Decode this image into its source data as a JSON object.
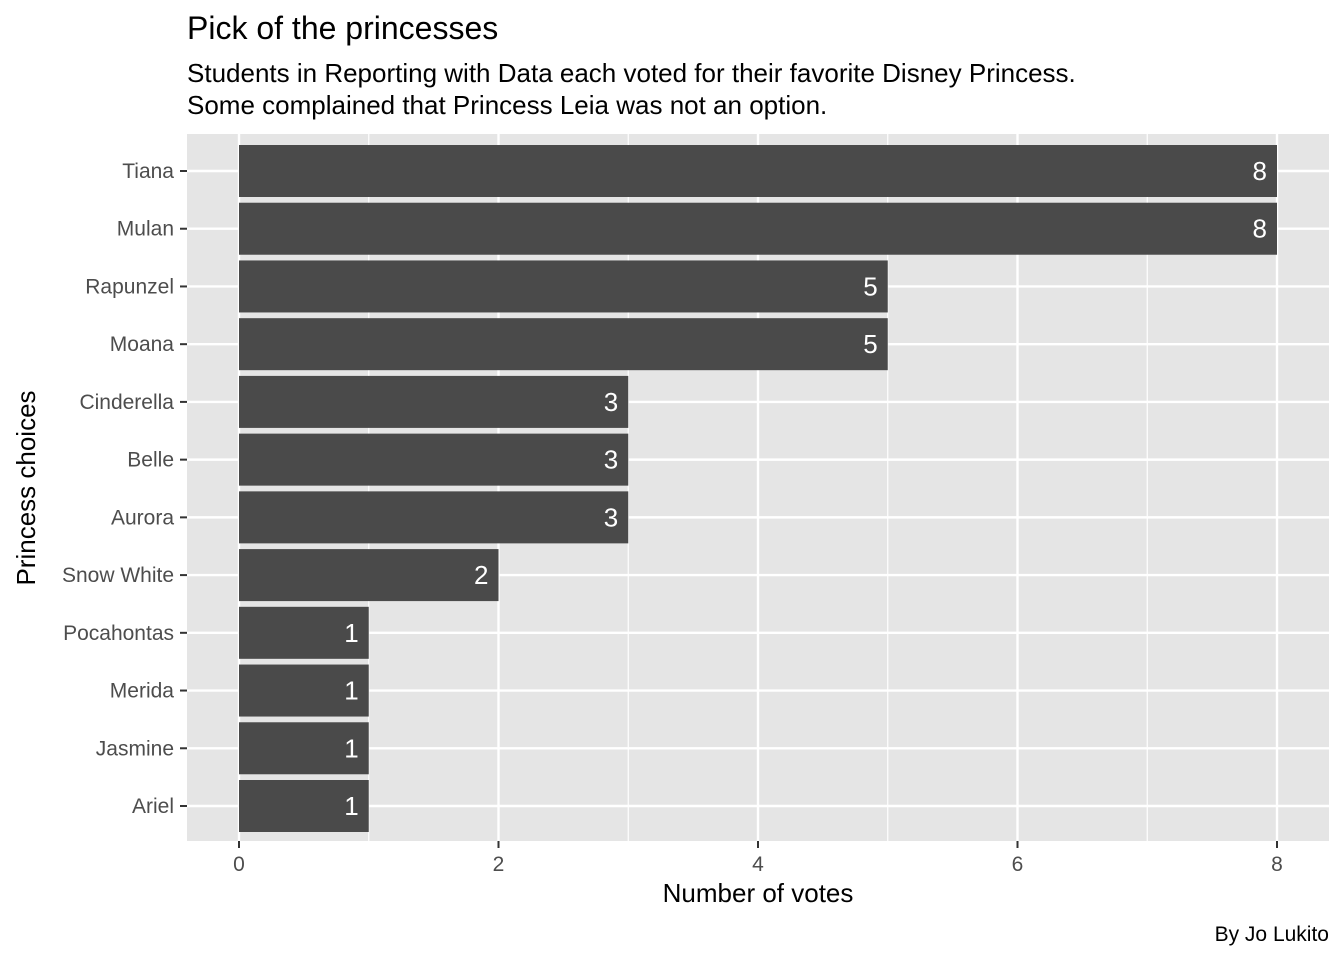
{
  "chart_data": {
    "type": "bar",
    "orientation": "horizontal",
    "title": "Pick of the princesses",
    "subtitle_lines": [
      "Students in Reporting with Data each voted for their favorite Disney Princess.",
      "Some complained that Princess Leia was not an option."
    ],
    "xlabel": "Number of votes",
    "ylabel": "Princess choices",
    "caption": "By Jo Lukito",
    "categories": [
      "Tiana",
      "Mulan",
      "Rapunzel",
      "Moana",
      "Cinderella",
      "Belle",
      "Aurora",
      "Snow White",
      "Pocahontas",
      "Merida",
      "Jasmine",
      "Ariel"
    ],
    "values": [
      8,
      8,
      5,
      5,
      3,
      3,
      3,
      2,
      1,
      1,
      1,
      1
    ],
    "xlim": [
      0,
      8
    ],
    "xticks": [
      0,
      2,
      4,
      6,
      8
    ],
    "grid": true,
    "colors": {
      "panel": "#e5e5e5",
      "bar": "#4a4a4a",
      "grid": "#ffffff",
      "bar_label": "#ffffff"
    }
  }
}
